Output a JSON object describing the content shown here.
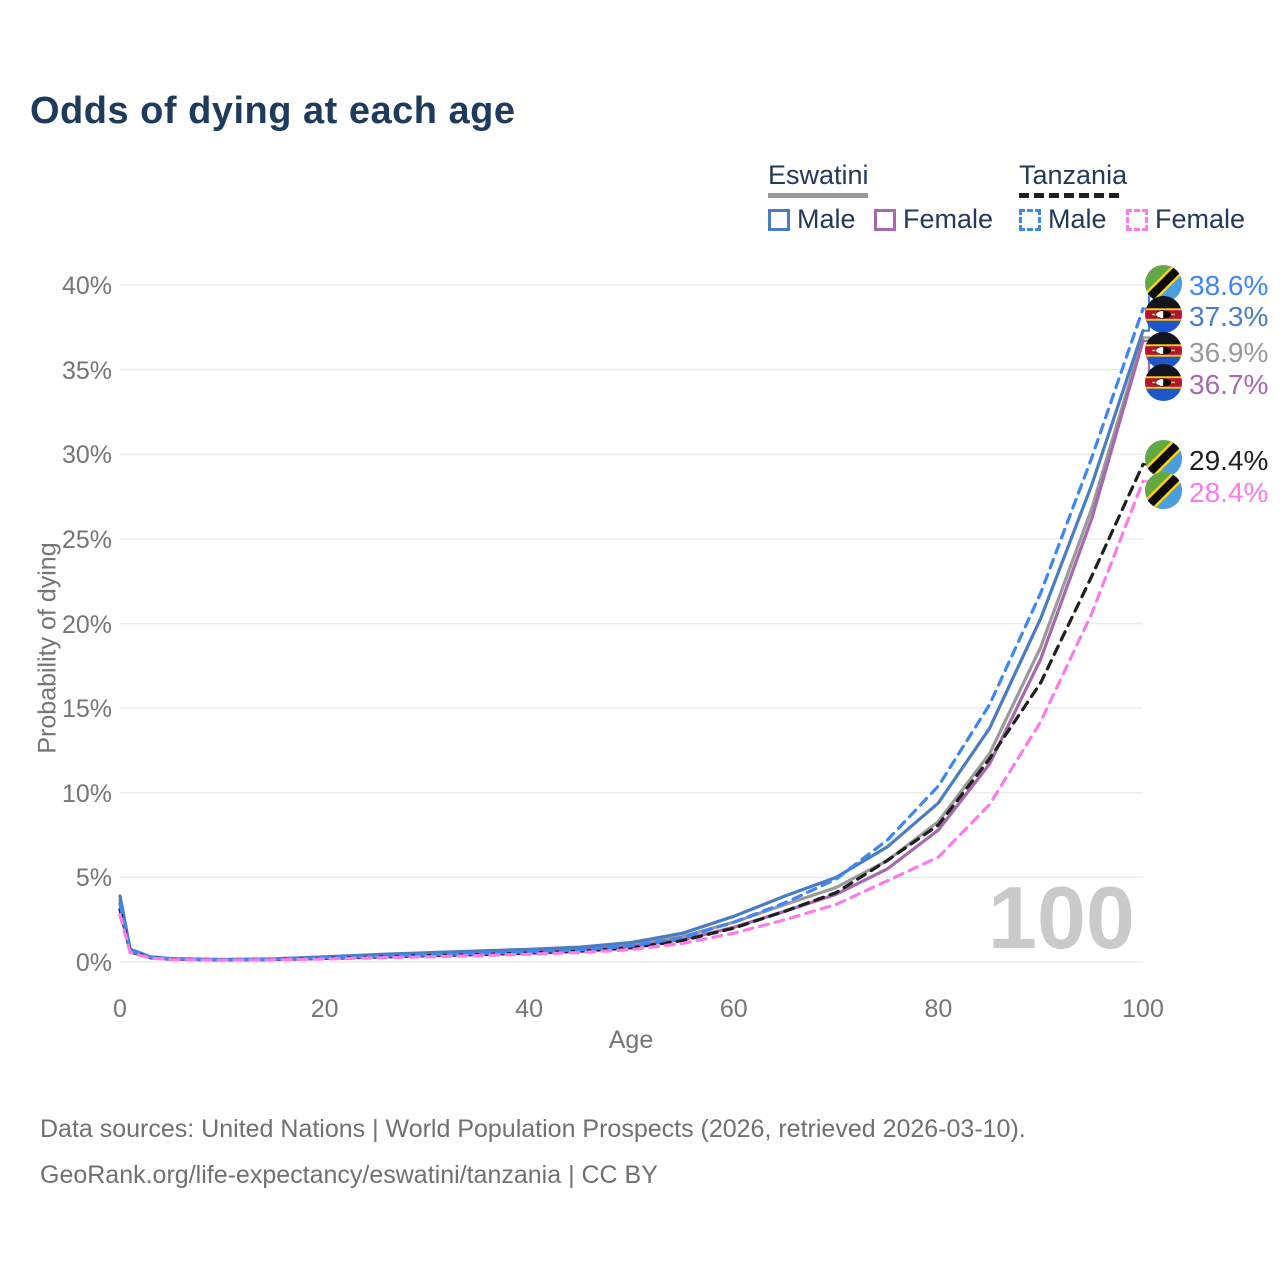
{
  "title": "Odds of dying at each age",
  "legend": {
    "eswatini": {
      "title": "Eswatini",
      "male": "Male",
      "female": "Female"
    },
    "tanzania": {
      "title": "Tanzania",
      "male": "Male",
      "female": "Female"
    }
  },
  "watermark": "100",
  "footer": {
    "line1": "Data sources: United Nations | World Population Prospects (2026, retrieved 2026-03-10).",
    "line2": "GeoRank.org/life-expectancy/eswatini/tanzania | CC BY"
  },
  "colors": {
    "title_text": "#1e3a5c",
    "axis_text": "#757575",
    "gridline": "#ececec",
    "eswatini_male": "#4a7dbf",
    "eswatini_female": "#a669ad",
    "eswatini_both": "#9a9a9a",
    "tanzania_male": "#3f86f5",
    "tanzania_female": "#fb7be9",
    "tanzania_both": "#1f1f1f"
  },
  "chart_data": {
    "type": "line",
    "title": "Odds of dying at each age",
    "xlabel": "Age",
    "ylabel": "Probability of dying",
    "xlim": [
      0,
      100
    ],
    "ylim": [
      0,
      40
    ],
    "grid": "horizontal",
    "legend_position": "top-right",
    "x_ticks": [
      {
        "label": "0",
        "value": 0
      },
      {
        "label": "20",
        "value": 20
      },
      {
        "label": "40",
        "value": 40
      },
      {
        "label": "60",
        "value": 60
      },
      {
        "label": "80",
        "value": 80
      },
      {
        "label": "100",
        "value": 100
      }
    ],
    "y_ticks": [
      {
        "label": "0%",
        "value": 0
      },
      {
        "label": "5%",
        "value": 5
      },
      {
        "label": "10%",
        "value": 10
      },
      {
        "label": "15%",
        "value": 15
      },
      {
        "label": "20%",
        "value": 20
      },
      {
        "label": "25%",
        "value": 25
      },
      {
        "label": "30%",
        "value": 30
      },
      {
        "label": "35%",
        "value": 35
      },
      {
        "label": "40%",
        "value": 40
      }
    ],
    "ages": [
      0,
      1,
      3,
      5,
      10,
      15,
      20,
      25,
      30,
      35,
      40,
      45,
      50,
      55,
      60,
      65,
      70,
      75,
      80,
      85,
      90,
      95,
      100
    ],
    "series": [
      {
        "key": "eswatini_both",
        "name": "Eswatini Both sexes",
        "country": "Eswatini",
        "style": "solid",
        "color": "#9a9a9a",
        "values": [
          3.7,
          0.7,
          0.28,
          0.19,
          0.14,
          0.17,
          0.27,
          0.38,
          0.48,
          0.57,
          0.67,
          0.79,
          1.03,
          1.5,
          2.35,
          3.4,
          4.4,
          6.0,
          8.3,
          12.3,
          18.6,
          26.8,
          36.9
        ]
      },
      {
        "key": "eswatini_female",
        "name": "Eswatini Female",
        "country": "Eswatini",
        "style": "solid",
        "color": "#a669ad",
        "values": [
          3.5,
          0.65,
          0.26,
          0.17,
          0.13,
          0.15,
          0.23,
          0.32,
          0.42,
          0.51,
          0.6,
          0.71,
          0.92,
          1.32,
          2.05,
          3.0,
          4.0,
          5.5,
          7.8,
          11.7,
          17.9,
          26.2,
          36.7
        ]
      },
      {
        "key": "eswatini_male",
        "name": "Eswatini Male",
        "country": "Eswatini",
        "style": "solid",
        "color": "#4a7dbf",
        "values": [
          3.9,
          0.75,
          0.3,
          0.2,
          0.15,
          0.19,
          0.3,
          0.44,
          0.55,
          0.65,
          0.75,
          0.88,
          1.15,
          1.7,
          2.7,
          3.9,
          5.0,
          6.8,
          9.4,
          13.8,
          20.3,
          28.2,
          37.3
        ]
      },
      {
        "key": "tanzania_both",
        "name": "Tanzania Both sexes",
        "country": "Tanzania",
        "style": "dashed",
        "color": "#1f1f1f",
        "values": [
          3.1,
          0.6,
          0.25,
          0.16,
          0.12,
          0.14,
          0.21,
          0.29,
          0.37,
          0.44,
          0.53,
          0.64,
          0.84,
          1.27,
          2.0,
          3.0,
          4.1,
          6.0,
          8.1,
          12.0,
          16.5,
          22.8,
          29.4
        ]
      },
      {
        "key": "tanzania_male",
        "name": "Tanzania Male",
        "country": "Tanzania",
        "style": "dashed",
        "color": "#3f86f5",
        "values": [
          3.45,
          0.65,
          0.27,
          0.18,
          0.13,
          0.16,
          0.24,
          0.33,
          0.42,
          0.5,
          0.6,
          0.72,
          0.95,
          1.45,
          2.35,
          3.5,
          4.9,
          7.2,
          10.4,
          15.2,
          21.8,
          29.8,
          38.6
        ]
      },
      {
        "key": "tanzania_female",
        "name": "Tanzania Female",
        "country": "Tanzania",
        "style": "dashed",
        "color": "#fb7be9",
        "values": [
          2.8,
          0.55,
          0.23,
          0.14,
          0.11,
          0.13,
          0.18,
          0.25,
          0.31,
          0.38,
          0.46,
          0.56,
          0.73,
          1.1,
          1.7,
          2.5,
          3.4,
          4.8,
          6.2,
          9.3,
          14.2,
          20.6,
          28.4
        ]
      }
    ],
    "end_labels": [
      {
        "value": "38.6%",
        "series": "tanzania_male",
        "flag": "tanzania"
      },
      {
        "value": "37.3%",
        "series": "eswatini_male",
        "flag": "eswatini"
      },
      {
        "value": "36.9%",
        "series": "eswatini_both",
        "flag": "eswatini"
      },
      {
        "value": "36.7%",
        "series": "eswatini_female",
        "flag": "eswatini"
      },
      {
        "value": "29.4%",
        "series": "tanzania_both",
        "flag": "tanzania"
      },
      {
        "value": "28.4%",
        "series": "tanzania_female",
        "flag": "tanzania"
      }
    ]
  }
}
